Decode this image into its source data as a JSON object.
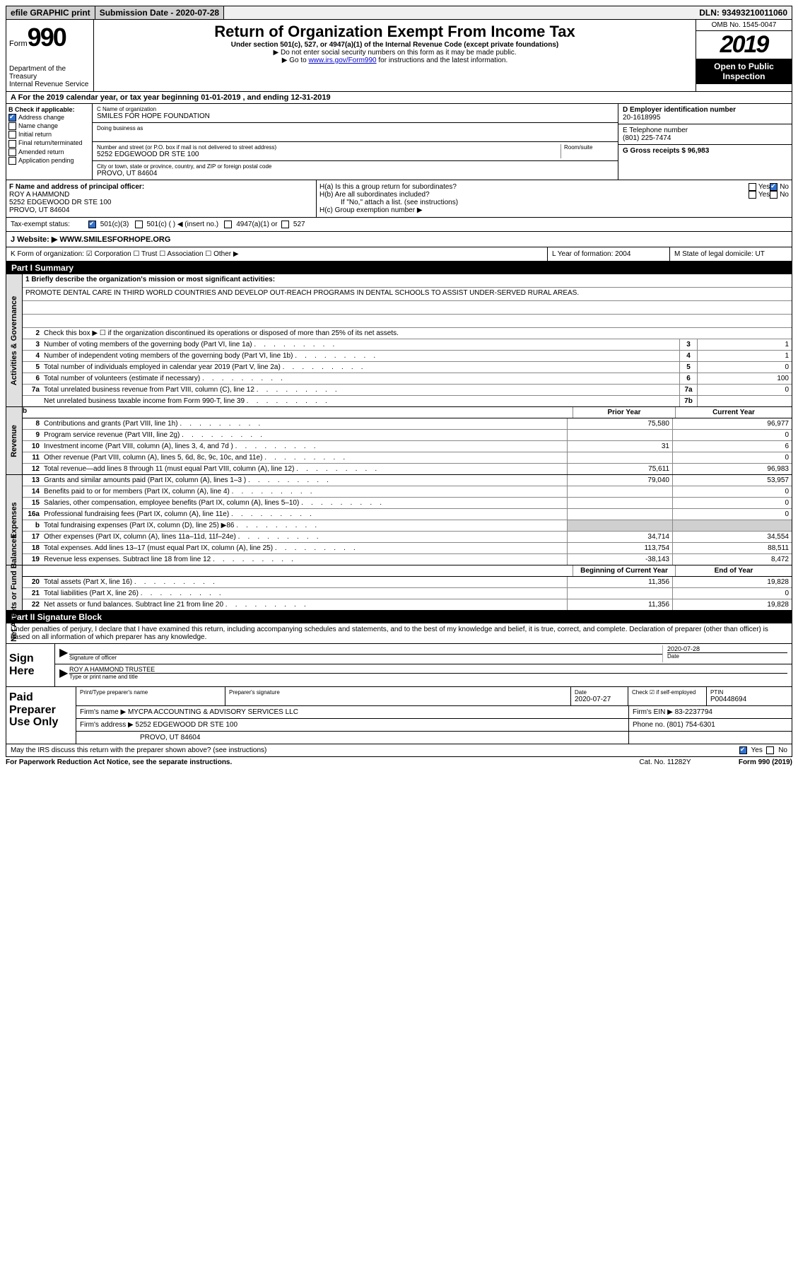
{
  "top": {
    "efile": "efile GRAPHIC print",
    "submission_label": "Submission Date - 2020-07-28",
    "dln": "DLN: 93493210011060"
  },
  "header": {
    "form_word": "Form",
    "form_num": "990",
    "dept": "Department of the Treasury\nInternal Revenue Service",
    "title": "Return of Organization Exempt From Income Tax",
    "subtitle": "Under section 501(c), 527, or 4947(a)(1) of the Internal Revenue Code (except private foundations)",
    "line2": "▶ Do not enter social security numbers on this form as it may be made public.",
    "line3_pre": "▶ Go to ",
    "line3_link": "www.irs.gov/Form990",
    "line3_post": " for instructions and the latest information.",
    "omb": "OMB No. 1545-0047",
    "year": "2019",
    "open_pub": "Open to Public Inspection"
  },
  "row_a": "A For the 2019 calendar year, or tax year beginning 01-01-2019   , and ending 12-31-2019",
  "box_b": {
    "label": "B Check if applicable:",
    "items": [
      "Address change",
      "Name change",
      "Initial return",
      "Final return/terminated",
      "Amended return",
      "Application pending"
    ]
  },
  "box_c": {
    "name_lbl": "C Name of organization",
    "name": "SMILES FOR HOPE FOUNDATION",
    "dba_lbl": "Doing business as",
    "addr_lbl": "Number and street (or P.O. box if mail is not delivered to street address)",
    "room_lbl": "Room/suite",
    "addr": "5252 EDGEWOOD DR STE 100",
    "city_lbl": "City or town, state or province, country, and ZIP or foreign postal code",
    "city": "PROVO, UT  84604"
  },
  "box_d": {
    "lbl": "D Employer identification number",
    "val": "20-1618995"
  },
  "box_e": {
    "lbl": "E Telephone number",
    "val": "(801) 225-7474"
  },
  "box_g": {
    "lbl": "G Gross receipts $ 96,983"
  },
  "box_f": {
    "lbl": "F  Name and address of principal officer:",
    "name": "ROY A HAMMOND",
    "addr1": "5252 EDGEWOOD DR STE 100",
    "addr2": "PROVO, UT  84604"
  },
  "box_h": {
    "ha": "H(a)  Is this a group return for subordinates?",
    "hb": "H(b)  Are all subordinates included?",
    "hb_note": "If \"No,\" attach a list. (see instructions)",
    "hc": "H(c)  Group exemption number ▶",
    "yes": "Yes",
    "no": "No"
  },
  "exempt": {
    "lbl": "Tax-exempt status:",
    "o1": "501(c)(3)",
    "o2": "501(c) (  ) ◀ (insert no.)",
    "o3": "4947(a)(1) or",
    "o4": "527"
  },
  "website": {
    "lbl": "J   Website: ▶",
    "val": " WWW.SMILESFORHOPE.ORG"
  },
  "row_k": {
    "k1": "K Form of organization:   ☑ Corporation  ☐ Trust  ☐ Association  ☐ Other ▶",
    "k2": "L Year of formation: 2004",
    "k3": "M State of legal domicile: UT"
  },
  "part1": {
    "hdr": "Part I      Summary",
    "l1_lbl": "1  Briefly describe the organization's mission or most significant activities:",
    "l1_txt": "PROMOTE DENTAL CARE IN THIRD WORLD COUNTRIES AND DEVELOP OUT-REACH PROGRAMS IN DENTAL SCHOOLS TO ASSIST UNDER-SERVED RURAL AREAS.",
    "l2": "Check this box ▶ ☐  if the organization discontinued its operations or disposed of more than 25% of its net assets."
  },
  "gov_lines": [
    {
      "n": "3",
      "d": "Number of voting members of the governing body (Part VI, line 1a)",
      "box": "3",
      "v": "1"
    },
    {
      "n": "4",
      "d": "Number of independent voting members of the governing body (Part VI, line 1b)",
      "box": "4",
      "v": "1"
    },
    {
      "n": "5",
      "d": "Total number of individuals employed in calendar year 2019 (Part V, line 2a)",
      "box": "5",
      "v": "0"
    },
    {
      "n": "6",
      "d": "Total number of volunteers (estimate if necessary)",
      "box": "6",
      "v": "100"
    },
    {
      "n": "7a",
      "d": "Total unrelated business revenue from Part VIII, column (C), line 12",
      "box": "7a",
      "v": "0"
    },
    {
      "n": "",
      "d": "Net unrelated business taxable income from Form 990-T, line 39",
      "box": "7b",
      "v": ""
    }
  ],
  "year_hdr": {
    "p": "Prior Year",
    "c": "Current Year"
  },
  "rev_lines": [
    {
      "n": "8",
      "d": "Contributions and grants (Part VIII, line 1h)",
      "p": "75,580",
      "c": "96,977"
    },
    {
      "n": "9",
      "d": "Program service revenue (Part VIII, line 2g)",
      "p": "",
      "c": "0"
    },
    {
      "n": "10",
      "d": "Investment income (Part VIII, column (A), lines 3, 4, and 7d )",
      "p": "31",
      "c": "6"
    },
    {
      "n": "11",
      "d": "Other revenue (Part VIII, column (A), lines 5, 6d, 8c, 9c, 10c, and 11e)",
      "p": "",
      "c": "0"
    },
    {
      "n": "12",
      "d": "Total revenue—add lines 8 through 11 (must equal Part VIII, column (A), line 12)",
      "p": "75,611",
      "c": "96,983"
    }
  ],
  "exp_lines": [
    {
      "n": "13",
      "d": "Grants and similar amounts paid (Part IX, column (A), lines 1–3 )",
      "p": "79,040",
      "c": "53,957"
    },
    {
      "n": "14",
      "d": "Benefits paid to or for members (Part IX, column (A), line 4)",
      "p": "",
      "c": "0"
    },
    {
      "n": "15",
      "d": "Salaries, other compensation, employee benefits (Part IX, column (A), lines 5–10)",
      "p": "",
      "c": "0"
    },
    {
      "n": "16a",
      "d": "Professional fundraising fees (Part IX, column (A), line 11e)",
      "p": "",
      "c": "0"
    },
    {
      "n": "b",
      "d": "Total fundraising expenses (Part IX, column (D), line 25) ▶86",
      "p": "",
      "c": "",
      "shade": true
    },
    {
      "n": "17",
      "d": "Other expenses (Part IX, column (A), lines 11a–11d, 11f–24e)",
      "p": "34,714",
      "c": "34,554"
    },
    {
      "n": "18",
      "d": "Total expenses. Add lines 13–17 (must equal Part IX, column (A), line 25)",
      "p": "113,754",
      "c": "88,511"
    },
    {
      "n": "19",
      "d": "Revenue less expenses. Subtract line 18 from line 12",
      "p": "-38,143",
      "c": "8,472"
    }
  ],
  "net_hdr": {
    "p": "Beginning of Current Year",
    "c": "End of Year"
  },
  "net_lines": [
    {
      "n": "20",
      "d": "Total assets (Part X, line 16)",
      "p": "11,356",
      "c": "19,828"
    },
    {
      "n": "21",
      "d": "Total liabilities (Part X, line 26)",
      "p": "",
      "c": "0"
    },
    {
      "n": "22",
      "d": "Net assets or fund balances. Subtract line 21 from line 20",
      "p": "11,356",
      "c": "19,828"
    }
  ],
  "part2": {
    "hdr": "Part II      Signature Block",
    "declare": "Under penalties of perjury, I declare that I have examined this return, including accompanying schedules and statements, and to the best of my knowledge and belief, it is true, correct, and complete. Declaration of preparer (other than officer) is based on all information of which preparer has any knowledge."
  },
  "sign": {
    "here": "Sign Here",
    "sig_lbl": "Signature of officer",
    "date_lbl": "Date",
    "date": "2020-07-28",
    "name": "ROY A HAMMOND  TRUSTEE",
    "name_lbl": "Type or print name and title"
  },
  "paid": {
    "lbl": "Paid Preparer Use Only",
    "r1": {
      "a": "Print/Type preparer's name",
      "b": "Preparer's signature",
      "c": "Date",
      "cd": "2020-07-27",
      "d": "Check ☑ if self-employed",
      "e": "PTIN",
      "ev": "P00448694"
    },
    "r2": {
      "a": "Firm's name      ▶",
      "av": "MYCPA ACCOUNTING & ADVISORY SERVICES LLC",
      "b": "Firm's EIN ▶ 83-2237794"
    },
    "r3": {
      "a": "Firm's address ▶",
      "av": "5252 EDGEWOOD DR STE 100",
      "b": "Phone no. (801) 754-6301"
    },
    "r4": {
      "a": "",
      "av": "PROVO, UT  84604",
      "b": ""
    }
  },
  "discuss": {
    "q": "May the IRS discuss this return with the preparer shown above? (see instructions)",
    "yes": "Yes",
    "no": "No"
  },
  "footer": {
    "f1": "For Paperwork Reduction Act Notice, see the separate instructions.",
    "f2": "Cat. No. 11282Y",
    "f3": "Form 990 (2019)"
  },
  "side": {
    "gov": "Activities & Governance",
    "rev": "Revenue",
    "exp": "Expenses",
    "net": "Net Assets or Fund Balances"
  }
}
